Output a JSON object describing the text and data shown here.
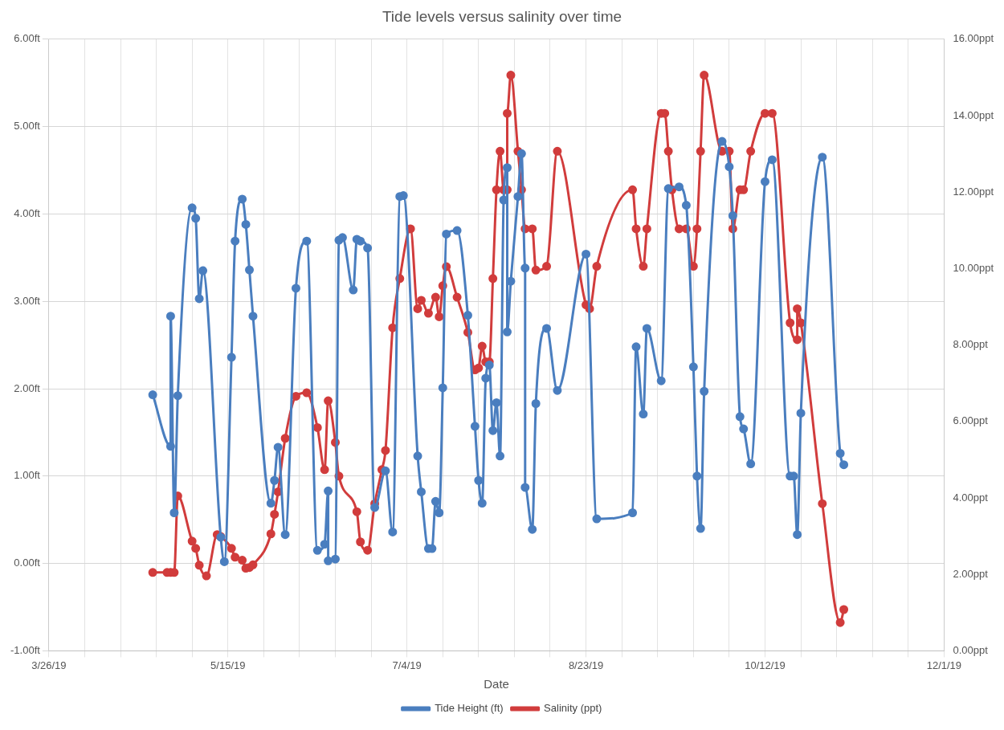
{
  "chart_data": {
    "type": "line",
    "title": "Tide levels versus salinity over time",
    "xlabel": "Date",
    "xlim": [
      "--03-26",
      "--12-01"
    ],
    "xticks": [
      {
        "value": "--03-26",
        "label": "3/26/19"
      },
      {
        "value": "--04-05",
        "label": null
      },
      {
        "value": "--04-15",
        "label": null
      },
      {
        "value": "--04-25",
        "label": null
      },
      {
        "value": "--05-05",
        "label": null
      },
      {
        "value": "--05-15",
        "label": "5/15/19"
      },
      {
        "value": "--05-25",
        "label": null
      },
      {
        "value": "--06-04",
        "label": null
      },
      {
        "value": "--06-14",
        "label": null
      },
      {
        "value": "--06-24",
        "label": null
      },
      {
        "value": "--07-04",
        "label": "7/4/19"
      },
      {
        "value": "--07-14",
        "label": null
      },
      {
        "value": "--07-24",
        "label": null
      },
      {
        "value": "--08-03",
        "label": null
      },
      {
        "value": "--08-13",
        "label": null
      },
      {
        "value": "--08-23",
        "label": "8/23/19"
      },
      {
        "value": "--09-02",
        "label": null
      },
      {
        "value": "--09-12",
        "label": null
      },
      {
        "value": "--09-22",
        "label": null
      },
      {
        "value": "--10-02",
        "label": null
      },
      {
        "value": "--10-12",
        "label": "10/12/19"
      },
      {
        "value": "--10-22",
        "label": null
      },
      {
        "value": "--11-01",
        "label": null
      },
      {
        "value": "--11-11",
        "label": null
      },
      {
        "value": "--11-21",
        "label": null
      },
      {
        "value": "--12-01",
        "label": "12/1/19"
      }
    ],
    "ylim": [
      -1,
      6
    ],
    "yticks": [
      {
        "value": -1,
        "label": "-1.00ft"
      },
      {
        "value": 0,
        "label": "0.00ft"
      },
      {
        "value": 1,
        "label": "1.00ft"
      },
      {
        "value": 2,
        "label": "2.00ft"
      },
      {
        "value": 3,
        "label": "3.00ft"
      },
      {
        "value": 4,
        "label": "4.00ft"
      },
      {
        "value": 5,
        "label": "5.00ft"
      },
      {
        "value": 6,
        "label": "6.00ft"
      }
    ],
    "y2lim": [
      0,
      16
    ],
    "y2ticks": [
      {
        "value": 0,
        "label": "0.00ppt"
      },
      {
        "value": 2,
        "label": "2.00ppt"
      },
      {
        "value": 4,
        "label": "4.00ppt"
      },
      {
        "value": 6,
        "label": "6.00ppt"
      },
      {
        "value": 8,
        "label": "8.00ppt"
      },
      {
        "value": 10,
        "label": "10.00ppt"
      },
      {
        "value": 12,
        "label": "12.00ppt"
      },
      {
        "value": 14,
        "label": "14.00ppt"
      },
      {
        "value": 16,
        "label": "16.00ppt"
      }
    ],
    "grid": true,
    "legend": "bottom",
    "marker": "circle",
    "line_style": "solid",
    "series": [
      {
        "name": "Tide Height (ft)",
        "color": "#4a7ebf",
        "x": [
          "--04-24",
          "--04-29",
          "--04-29",
          "--04-30",
          "--05-01",
          "--05-05",
          "--05-06",
          "--05-07",
          "--05-08",
          "--05-13",
          "--05-14",
          "--05-16",
          "--05-17",
          "--05-19",
          "--05-20",
          "--05-21",
          "--05-22",
          "--05-27",
          "--05-28",
          "--05-29",
          "--05-31",
          "--06-03",
          "--06-06",
          "--06-09",
          "--06-11",
          "--06-12",
          "--06-12",
          "--06-14",
          "--06-15",
          "--06-16",
          "--06-19",
          "--06-20",
          "--06-21",
          "--06-23",
          "--06-25",
          "--06-28",
          "--06-30",
          "--07-02",
          "--07-03",
          "--07-07",
          "--07-08",
          "--07-10",
          "--07-11",
          "--07-12",
          "--07-13",
          "--07-14",
          "--07-15",
          "--07-18",
          "--07-21",
          "--07-23",
          "--07-24",
          "--07-25",
          "--07-26",
          "--07-27",
          "--07-28",
          "--07-29",
          "--07-30",
          "--07-31",
          "--08-01",
          "--08-01",
          "--08-02",
          "--08-04",
          "--08-05",
          "--08-06",
          "--08-06",
          "--08-08",
          "--08-09",
          "--08-12",
          "--08-15",
          "--08-23",
          "--08-26",
          "--09-05",
          "--09-06",
          "--09-08",
          "--09-09",
          "--09-13",
          "--09-15",
          "--09-18",
          "--09-20",
          "--09-22",
          "--09-23",
          "--09-24",
          "--09-25",
          "--09-30",
          "--10-02",
          "--10-03",
          "--10-05",
          "--10-06",
          "--10-08",
          "--10-12",
          "--10-14",
          "--10-19",
          "--10-20",
          "--10-21",
          "--10-22",
          "--10-28",
          "--11-02",
          "--11-03"
        ],
        "values": [
          1.93,
          1.34,
          2.83,
          0.58,
          1.92,
          4.07,
          3.95,
          3.03,
          3.35,
          0.3,
          0.02,
          2.36,
          3.69,
          4.17,
          3.88,
          3.36,
          2.83,
          0.69,
          0.95,
          1.33,
          0.33,
          3.15,
          3.69,
          0.15,
          0.22,
          0.83,
          0.03,
          0.05,
          3.7,
          3.73,
          3.13,
          3.71,
          3.69,
          3.61,
          0.64,
          1.06,
          0.36,
          4.2,
          4.21,
          1.23,
          0.82,
          0.17,
          0.17,
          0.71,
          0.58,
          2.01,
          3.77,
          3.81,
          2.84,
          1.57,
          0.95,
          0.69,
          2.12,
          2.27,
          1.52,
          1.84,
          1.23,
          4.16,
          4.53,
          2.65,
          3.23,
          4.2,
          4.69,
          3.38,
          0.87,
          0.39,
          1.83,
          2.69,
          1.98,
          3.54,
          0.51,
          0.58,
          2.48,
          1.71,
          2.69,
          2.09,
          4.29,
          4.31,
          4.1,
          2.25,
          1.0,
          0.4,
          1.97,
          4.83,
          4.54,
          3.98,
          1.68,
          1.54,
          1.14,
          4.37,
          4.62,
          1.0,
          1.0,
          0.33,
          1.72,
          4.65,
          1.26,
          1.13
        ]
      },
      {
        "name": "Salinity (ppt)",
        "color": "#d13c3c",
        "axis": "y2",
        "x": [
          "--04-24",
          "--04-28",
          "--04-29",
          "--04-30",
          "--05-01",
          "--05-05",
          "--05-06",
          "--05-07",
          "--05-09",
          "--05-12",
          "--05-13",
          "--05-16",
          "--05-17",
          "--05-19",
          "--05-20",
          "--05-21",
          "--05-22",
          "--05-27",
          "--05-28",
          "--05-29",
          "--05-31",
          "--06-03",
          "--06-06",
          "--06-09",
          "--06-11",
          "--06-12",
          "--06-14",
          "--06-15",
          "--06-20",
          "--06-21",
          "--06-23",
          "--06-25",
          "--06-27",
          "--06-28",
          "--06-30",
          "--07-02",
          "--07-05",
          "--07-07",
          "--07-08",
          "--07-10",
          "--07-12",
          "--07-13",
          "--07-14",
          "--07-15",
          "--07-18",
          "--07-21",
          "--07-23",
          "--07-24",
          "--07-25",
          "--07-26",
          "--07-27",
          "--07-28",
          "--07-29",
          "--07-30",
          "--07-31",
          "--08-01",
          "--08-01",
          "--08-02",
          "--08-04",
          "--08-05",
          "--08-06",
          "--08-08",
          "--08-09",
          "--08-12",
          "--08-15",
          "--08-23",
          "--08-24",
          "--08-26",
          "--09-05",
          "--09-06",
          "--09-08",
          "--09-09",
          "--09-13",
          "--09-14",
          "--09-15",
          "--09-16",
          "--09-18",
          "--09-20",
          "--09-22",
          "--09-23",
          "--09-24",
          "--09-25",
          "--09-30",
          "--10-02",
          "--10-03",
          "--10-05",
          "--10-06",
          "--10-08",
          "--10-12",
          "--10-14",
          "--10-19",
          "--10-21",
          "--10-21",
          "--10-22",
          "--10-28",
          "--11-02",
          "--11-03"
        ],
        "values": [
          2.05,
          2.05,
          2.05,
          2.05,
          4.05,
          2.87,
          2.68,
          2.24,
          1.96,
          3.04,
          2.99,
          2.68,
          2.45,
          2.37,
          2.16,
          2.18,
          2.25,
          3.06,
          3.57,
          4.16,
          5.56,
          6.66,
          6.75,
          5.84,
          4.74,
          6.54,
          5.45,
          4.57,
          3.64,
          2.85,
          2.63,
          3.85,
          4.74,
          5.24,
          8.45,
          9.74,
          11.04,
          8.95,
          9.17,
          8.83,
          9.25,
          8.74,
          9.55,
          10.05,
          9.25,
          8.33,
          7.35,
          7.4,
          7.97,
          7.56,
          7.56,
          9.74,
          12.06,
          13.07,
          12.06,
          12.06,
          14.06,
          15.06,
          13.07,
          12.06,
          11.04,
          11.04,
          9.96,
          10.06,
          13.07,
          9.05,
          8.95,
          10.06,
          12.06,
          11.04,
          10.06,
          11.04,
          14.06,
          14.06,
          13.07,
          12.06,
          11.04,
          11.04,
          10.06,
          11.04,
          13.07,
          15.06,
          13.07,
          13.07,
          11.04,
          12.06,
          12.06,
          13.07,
          14.06,
          14.06,
          8.58,
          8.14,
          8.95,
          8.58,
          3.85,
          0.74,
          1.08
        ]
      }
    ]
  }
}
